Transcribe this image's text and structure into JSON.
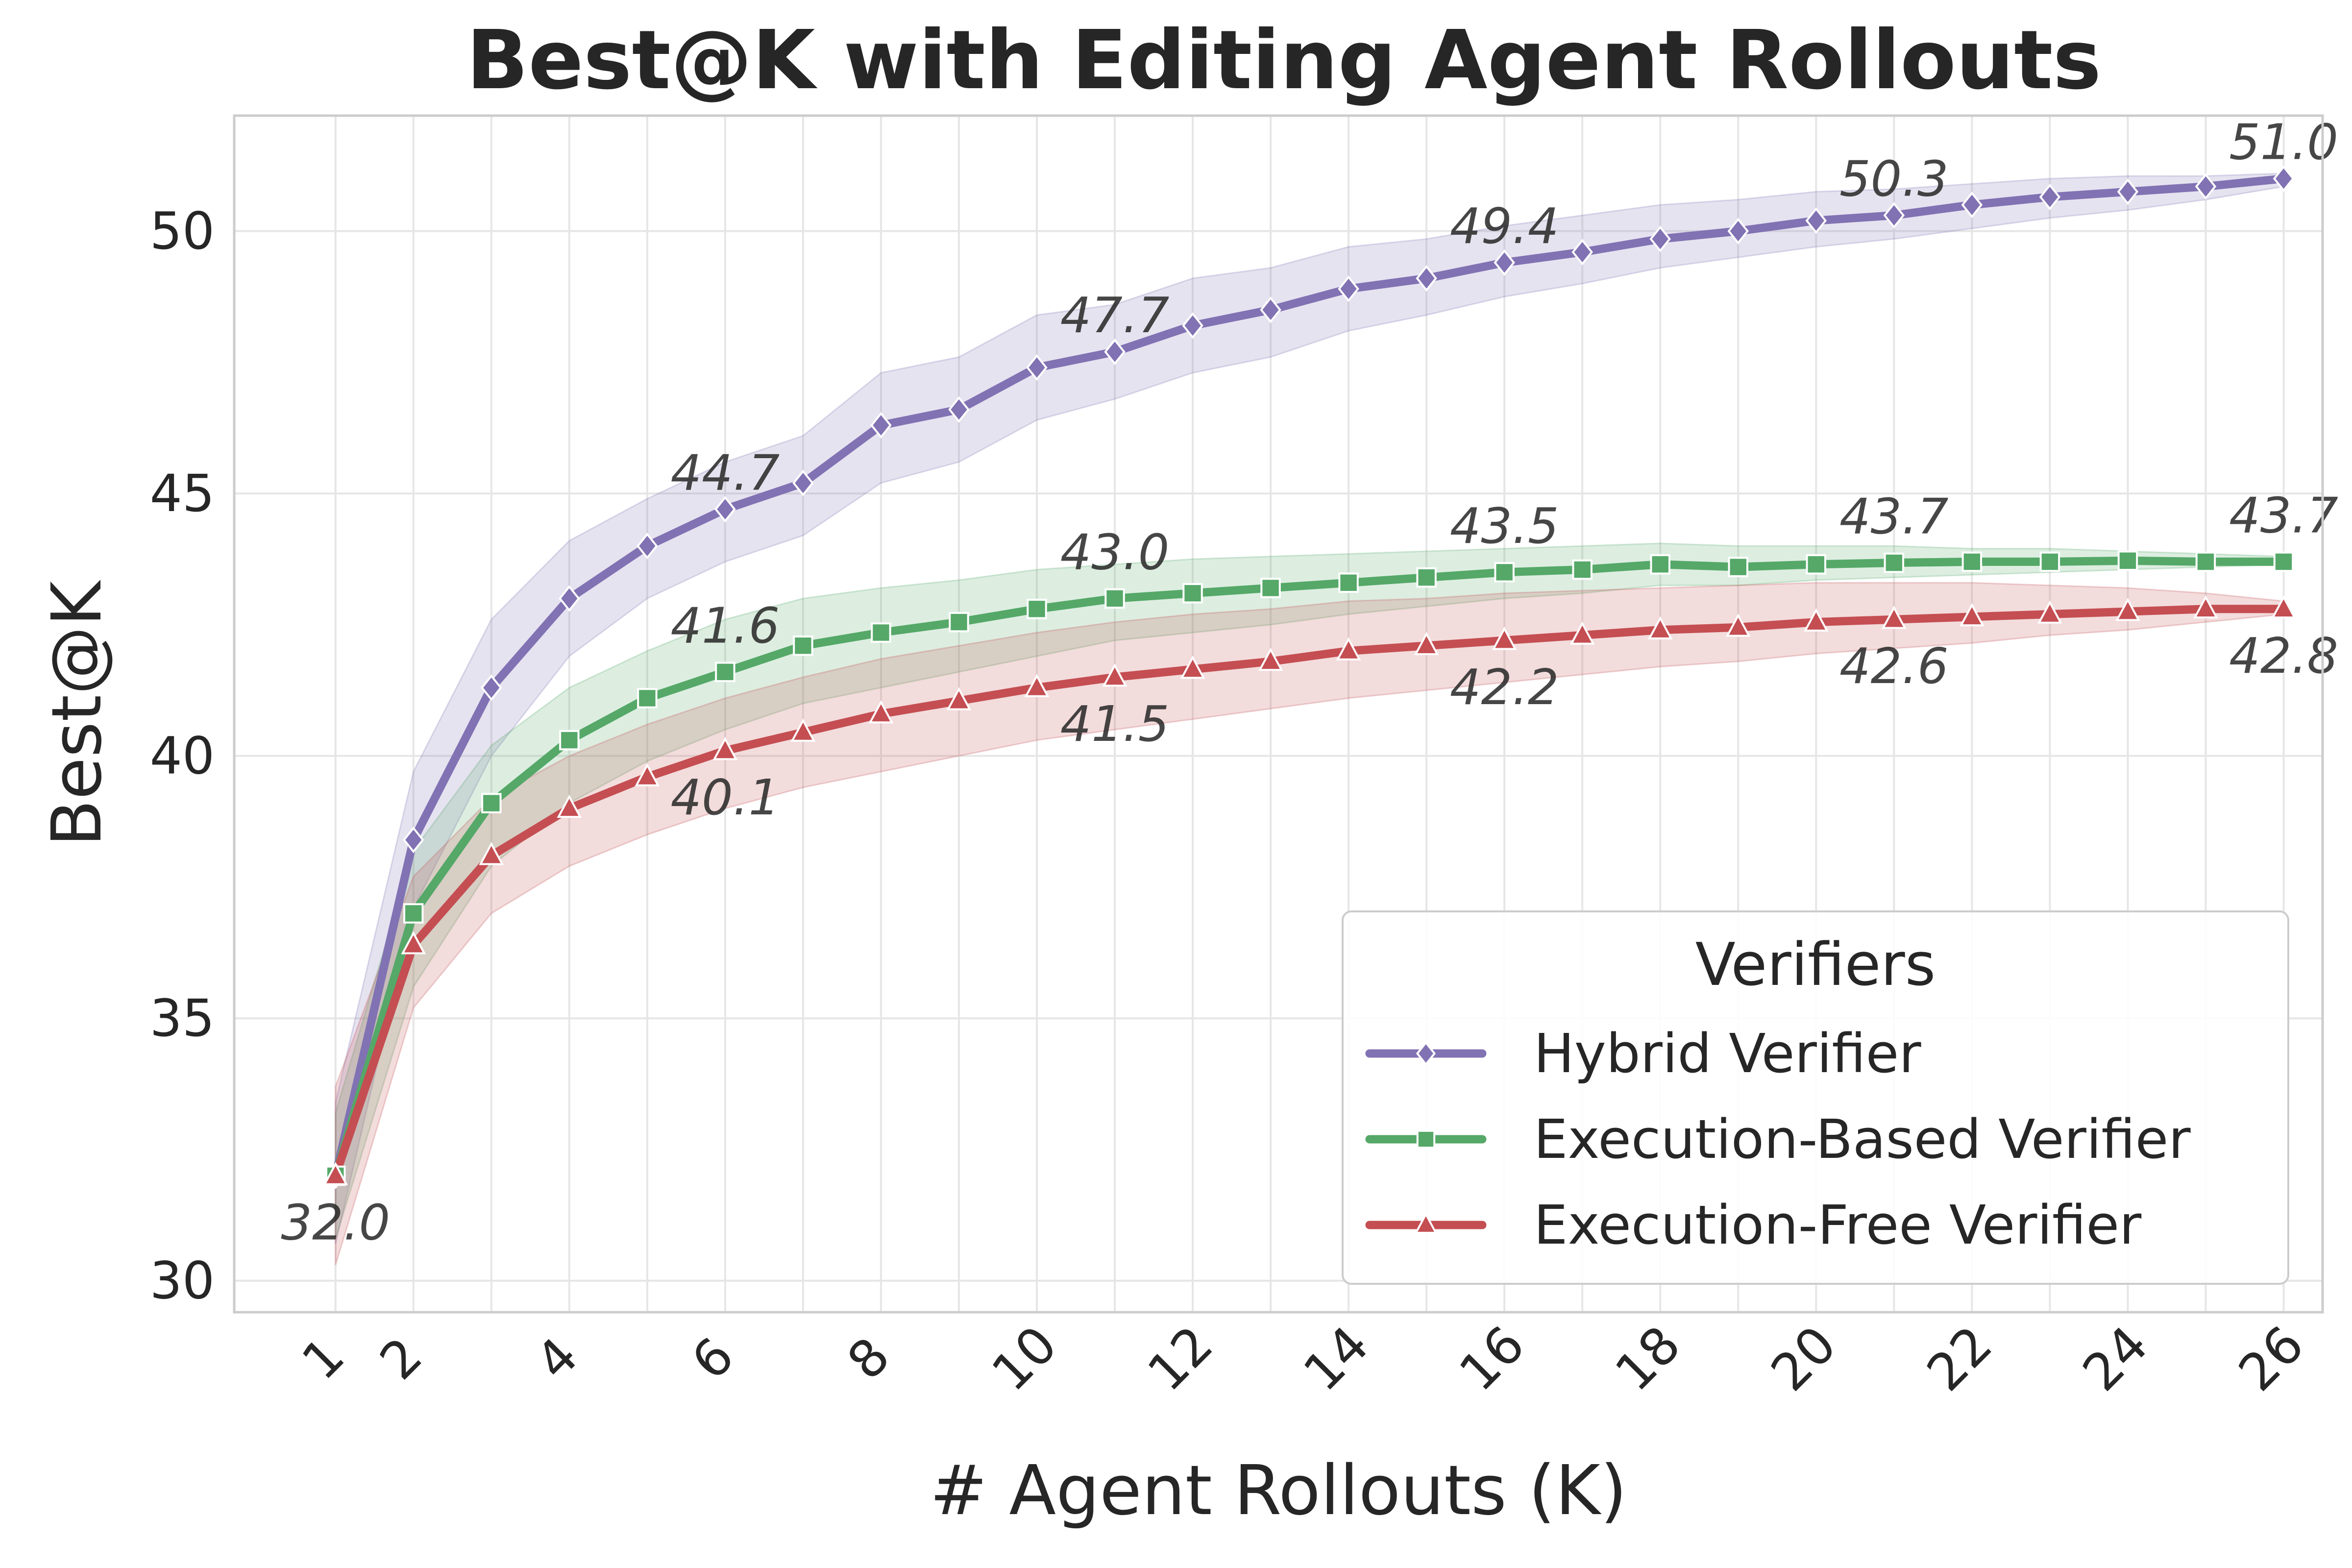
{
  "chart_data": {
    "type": "line",
    "title": "Best@K with Editing Agent Rollouts",
    "xlabel": "# Agent Rollouts (K)",
    "ylabel": "Best@K",
    "xlim": [
      -0.3,
      26.5
    ],
    "ylim": [
      29.4,
      52.2
    ],
    "x_ticks": [
      1,
      2,
      4,
      6,
      8,
      10,
      12,
      14,
      16,
      18,
      20,
      22,
      24,
      26
    ],
    "y_ticks": [
      30,
      35,
      40,
      45,
      50
    ],
    "grid": true,
    "legend": {
      "title": "Verifiers",
      "placement": "lower-right"
    },
    "x": [
      1,
      2,
      3,
      4,
      5,
      6,
      7,
      8,
      9,
      10,
      11,
      12,
      13,
      14,
      15,
      16,
      17,
      18,
      19,
      20,
      21,
      22,
      23,
      24,
      25,
      26
    ],
    "series": [
      {
        "name": "Hybrid Verifier",
        "color": "#8172b3",
        "marker": "diamond",
        "values": [
          32.0,
          38.4,
          41.3,
          43.0,
          44.0,
          44.7,
          45.2,
          46.3,
          46.6,
          47.4,
          47.7,
          48.2,
          48.5,
          48.9,
          49.1,
          49.4,
          49.6,
          49.85,
          50.0,
          50.2,
          50.3,
          50.5,
          50.65,
          50.75,
          50.85,
          51.0
        ],
        "lower": [
          30.7,
          37.1,
          40.0,
          41.9,
          43.0,
          43.7,
          44.2,
          45.2,
          45.6,
          46.4,
          46.8,
          47.3,
          47.6,
          48.1,
          48.4,
          48.75,
          49.0,
          49.3,
          49.5,
          49.7,
          49.85,
          50.05,
          50.25,
          50.4,
          50.6,
          50.85
        ],
        "upper": [
          33.4,
          39.7,
          42.6,
          44.1,
          44.9,
          45.6,
          46.1,
          47.3,
          47.6,
          48.4,
          48.6,
          49.1,
          49.3,
          49.7,
          49.85,
          50.1,
          50.3,
          50.5,
          50.6,
          50.75,
          50.8,
          50.9,
          51.0,
          51.05,
          51.05,
          51.1
        ]
      },
      {
        "name": "Execution-Based Verifier",
        "color": "#55a868",
        "marker": "square",
        "values": [
          32.0,
          37.0,
          39.1,
          40.3,
          41.1,
          41.6,
          42.1,
          42.35,
          42.55,
          42.8,
          43.0,
          43.1,
          43.2,
          43.3,
          43.4,
          43.5,
          43.55,
          43.65,
          43.6,
          43.65,
          43.68,
          43.7,
          43.7,
          43.72,
          43.7,
          43.7
        ],
        "lower": [
          30.8,
          35.6,
          37.9,
          39.1,
          39.9,
          40.5,
          41.0,
          41.3,
          41.6,
          41.9,
          42.2,
          42.35,
          42.5,
          42.7,
          42.85,
          43.0,
          43.1,
          43.25,
          43.25,
          43.35,
          43.4,
          43.45,
          43.5,
          43.55,
          43.6,
          43.65
        ],
        "upper": [
          33.2,
          38.2,
          40.2,
          41.3,
          42.0,
          42.6,
          43.0,
          43.2,
          43.35,
          43.55,
          43.65,
          43.75,
          43.8,
          43.85,
          43.9,
          43.95,
          44.0,
          44.05,
          44.0,
          44.0,
          44.0,
          43.95,
          43.95,
          43.9,
          43.85,
          43.8
        ]
      },
      {
        "name": "Execution-Free Verifier",
        "color": "#c44e52",
        "marker": "triangle",
        "values": [
          32.0,
          36.4,
          38.1,
          39.0,
          39.6,
          40.1,
          40.45,
          40.8,
          41.05,
          41.3,
          41.5,
          41.65,
          41.8,
          42.0,
          42.1,
          42.2,
          42.3,
          42.4,
          42.45,
          42.55,
          42.6,
          42.65,
          42.7,
          42.75,
          42.8,
          42.8
        ],
        "lower": [
          30.3,
          35.2,
          37.0,
          37.9,
          38.5,
          39.0,
          39.4,
          39.7,
          40.0,
          40.3,
          40.5,
          40.7,
          40.9,
          41.1,
          41.25,
          41.4,
          41.55,
          41.7,
          41.8,
          41.95,
          42.05,
          42.15,
          42.3,
          42.4,
          42.55,
          42.7
        ],
        "upper": [
          33.7,
          37.7,
          39.2,
          40.0,
          40.6,
          41.1,
          41.5,
          41.85,
          42.1,
          42.35,
          42.55,
          42.7,
          42.8,
          42.95,
          43.0,
          43.1,
          43.15,
          43.2,
          43.25,
          43.3,
          43.3,
          43.3,
          43.25,
          43.2,
          43.1,
          42.95
        ]
      }
    ],
    "annotations": [
      {
        "series": 0,
        "x": 1,
        "text": "32.0"
      },
      {
        "series": 0,
        "x": 6,
        "text": "44.7"
      },
      {
        "series": 0,
        "x": 11,
        "text": "47.7"
      },
      {
        "series": 0,
        "x": 16,
        "text": "49.4"
      },
      {
        "series": 0,
        "x": 21,
        "text": "50.3"
      },
      {
        "series": 0,
        "x": 26,
        "text": "51.0"
      },
      {
        "series": 1,
        "x": 6,
        "text": "41.6"
      },
      {
        "series": 1,
        "x": 11,
        "text": "43.0"
      },
      {
        "series": 1,
        "x": 16,
        "text": "43.5"
      },
      {
        "series": 1,
        "x": 21,
        "text": "43.7"
      },
      {
        "series": 1,
        "x": 26,
        "text": "43.7"
      },
      {
        "series": 2,
        "x": 6,
        "text": "40.1"
      },
      {
        "series": 2,
        "x": 11,
        "text": "41.5"
      },
      {
        "series": 2,
        "x": 16,
        "text": "42.2"
      },
      {
        "series": 2,
        "x": 21,
        "text": "42.6"
      },
      {
        "series": 2,
        "x": 26,
        "text": "42.8"
      }
    ]
  }
}
